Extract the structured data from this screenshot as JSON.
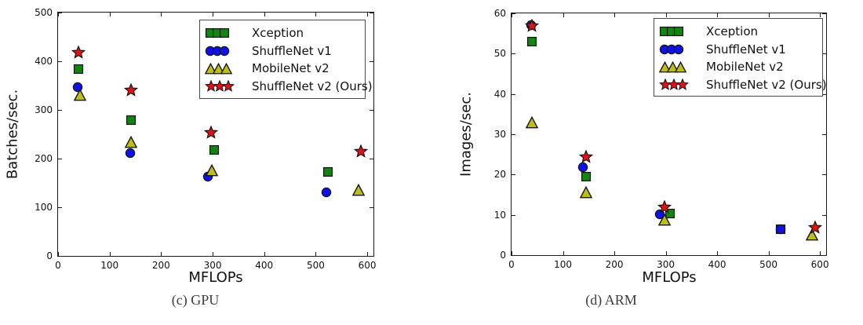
{
  "page": {
    "background": "#ffffff"
  },
  "chart_data": [
    {
      "type": "scatter",
      "caption": "(c) GPU",
      "xlabel": "MFLOPs",
      "ylabel": "Batches/sec.",
      "xlim": [
        0,
        612
      ],
      "ylim": [
        0,
        500
      ],
      "x_ticks": [
        0,
        100,
        200,
        300,
        400,
        500,
        600
      ],
      "y_ticks": [
        0,
        100,
        200,
        300,
        400,
        500
      ],
      "grid": false,
      "legend_position": "upper-right-inside",
      "series": [
        {
          "name": "Xception",
          "marker": "square",
          "color": "#128412",
          "points": [
            [
              40,
              384
            ],
            [
              142,
              279
            ],
            [
              303,
              217
            ],
            [
              523,
              172
            ]
          ]
        },
        {
          "name": "ShuffleNet v1",
          "marker": "circle",
          "color": "#1010ee",
          "points": [
            [
              38,
              346
            ],
            [
              140,
              211
            ],
            [
              291,
              163
            ],
            [
              521,
              131
            ]
          ]
        },
        {
          "name": "MobileNet v2",
          "marker": "triangle",
          "color": "#bdbd1c",
          "points": [
            [
              42,
              330
            ],
            [
              142,
              234
            ],
            [
              298,
              176
            ],
            [
              583,
              136
            ]
          ]
        },
        {
          "name": "ShuffleNet v2 (Ours)",
          "marker": "star",
          "color": "#e01212",
          "points": [
            [
              40,
              418
            ],
            [
              142,
              341
            ],
            [
              297,
              254
            ],
            [
              588,
              215
            ]
          ]
        }
      ]
    },
    {
      "type": "scatter",
      "caption": "(d) ARM",
      "xlabel": "MFLOPs",
      "ylabel": "Images/sec.",
      "xlim": [
        0,
        612
      ],
      "ylim": [
        0,
        60
      ],
      "x_ticks": [
        0,
        100,
        200,
        300,
        400,
        500,
        600
      ],
      "y_ticks": [
        0,
        10,
        20,
        30,
        40,
        50,
        60
      ],
      "grid": false,
      "legend_position": "upper-right-inside",
      "series": [
        {
          "name": "Xception",
          "marker": "square",
          "color": "#128412",
          "points": [
            [
              40,
              53
            ],
            [
              145,
              19.5
            ],
            [
              309,
              10.4
            ],
            [
              524,
              6.5
            ]
          ]
        },
        {
          "name": "ShuffleNet v1",
          "marker": "circle",
          "color": "#1010ee",
          "points": [
            [
              38,
              57
            ],
            [
              139,
              21.8
            ],
            [
              289,
              10.2
            ],
            [
              523,
              6.5
            ]
          ]
        },
        {
          "name": "MobileNet v2",
          "marker": "triangle",
          "color": "#bdbd1c",
          "points": [
            [
              40,
              33
            ],
            [
              145,
              15.5
            ],
            [
              298,
              8.7
            ],
            [
              585,
              5
            ]
          ]
        },
        {
          "name": "ShuffleNet v2 (Ours)",
          "marker": "star",
          "color": "#e01212",
          "points": [
            [
              40,
              56.8
            ],
            [
              145,
              24.4
            ],
            [
              298,
              11.8
            ],
            [
              591,
              6.8
            ]
          ]
        }
      ]
    }
  ]
}
